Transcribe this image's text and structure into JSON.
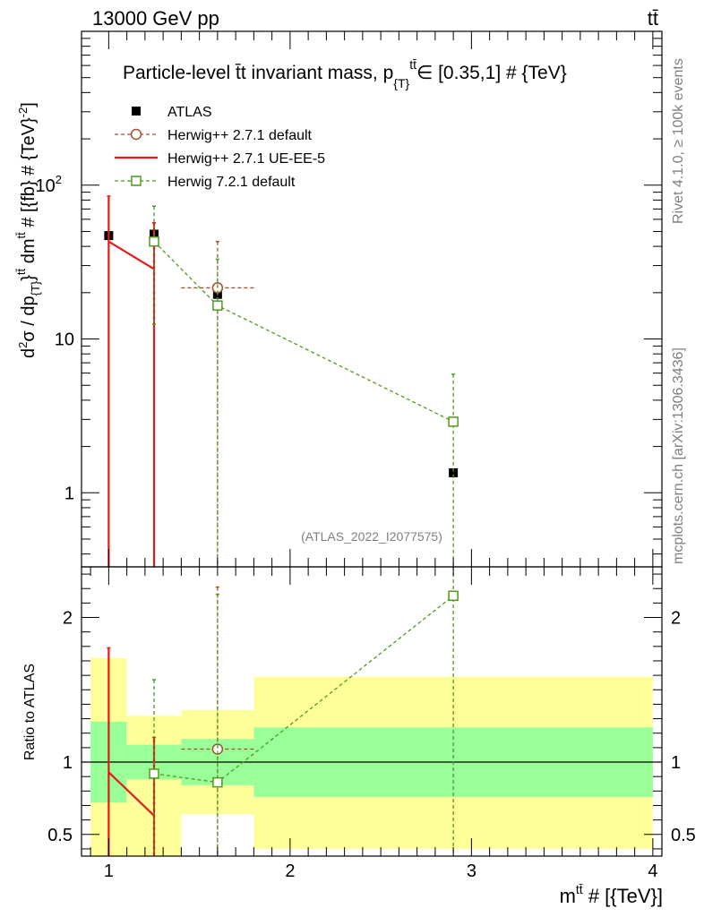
{
  "header": {
    "left": "13000 GeV pp",
    "right": "tt̄"
  },
  "side_labels": {
    "rivet": "Rivet 4.1.0, ≥ 100k events",
    "mcplots": "mcplots.cern.ch [arXiv:1306.3436]"
  },
  "chart_data": [
    {
      "type": "scatter",
      "panel": "main",
      "title": "Particle-level t̄t invariant mass, p{T}ᵗᵗ̄ ∈ [0.35,1] # {TeV}",
      "title_main": "Particle-level t̄t invariant mass, p",
      "title_sub": "{T}",
      "title_sup": "tt̄",
      "title_tail": "∈ [0.35,1] # {TeV}",
      "analysis_tag": "(ATLAS_2022_I2077575)",
      "ylabel": "d²σ / dp{T}ᵗᵗ̄ dmᵗᵗ̄ # [{fb} # {TeV}⁻²]",
      "ylabel_parts": {
        "a": "d",
        "b": "2",
        "c": "σ / dp",
        "d": "{T}",
        "e": "}",
        "f": "tt̄",
        "g": " dm",
        "h": "tt̄",
        "i": " # [{fb} # {TeV}",
        "j": "-2",
        "k": "]"
      },
      "yscale": "log",
      "ylim": [
        0.33,
        1000
      ],
      "xlim": [
        0.85,
        4.05
      ],
      "yticks": [
        {
          "v": 1,
          "label": "1"
        },
        {
          "v": 10,
          "label": "10"
        },
        {
          "v": 100,
          "label": "10",
          "sup": "2"
        }
      ],
      "legend": [
        {
          "label": "ATLAS",
          "color": "#000000",
          "marker": "filled-square",
          "line": "none"
        },
        {
          "label": "Herwig++ 2.7.1 default",
          "color": "#a0522d",
          "marker": "open-circle",
          "line": "dashed"
        },
        {
          "label": "Herwig++ 2.7.1 UE-EE-5",
          "color": "#e31a1c",
          "marker": "none",
          "line": "solid"
        },
        {
          "label": "Herwig 7.2.1 default",
          "color": "#4f9a1e",
          "marker": "open-square",
          "line": "dashed"
        }
      ],
      "series": [
        {
          "name": "ATLAS",
          "color": "#000000",
          "marker": "filled-square",
          "line": "none",
          "x": [
            1.0,
            1.25,
            1.6,
            2.9
          ],
          "y": [
            47,
            48,
            19.5,
            1.35
          ]
        },
        {
          "name": "Herwig++ 2.7.1 default",
          "color": "#a0522d",
          "marker": "open-circle",
          "line": "dashed",
          "x": [
            1.6
          ],
          "y": [
            21.5
          ],
          "xerr_lo": [
            0.2
          ],
          "xerr_hi": [
            0.2
          ],
          "yerr_lo": [
            21.2
          ],
          "yerr_hi": [
            21.5
          ]
        },
        {
          "name": "Herwig++ 2.7.1 UE-EE-5",
          "color": "#e31a1c",
          "marker": "none",
          "line": "solid",
          "x": [
            1.0,
            1.25
          ],
          "y": [
            43,
            28.5
          ],
          "yerr_lo": [
            43,
            28.5
          ],
          "yerr_hi": [
            42,
            28.5
          ]
        },
        {
          "name": "Herwig 7.2.1 default",
          "color": "#4f9a1e",
          "marker": "open-square",
          "line": "dashed",
          "x": [
            1.25,
            1.6,
            2.9
          ],
          "y": [
            43,
            16.5,
            2.9
          ],
          "yerr_lo": [
            30.5,
            16.5,
            2.9
          ],
          "yerr_hi": [
            30,
            16.5,
            3.0
          ]
        }
      ]
    },
    {
      "type": "scatter",
      "panel": "ratio",
      "ylabel": "Ratio to ATLAS",
      "xlabel": "mᵗᵗ̄ # [{TeV}]",
      "xlabel_parts": {
        "a": "m",
        "b": "tt̄",
        "c": " # [{TeV}]"
      },
      "ylim": [
        0.35,
        2.35
      ],
      "xlim": [
        0.85,
        4.05
      ],
      "yticks": [
        {
          "v": 0.5,
          "label": "0.5"
        },
        {
          "v": 1,
          "label": "1"
        },
        {
          "v": 2,
          "label": "2"
        }
      ],
      "xticks": [
        {
          "v": 1,
          "label": "1"
        },
        {
          "v": 2,
          "label": "2"
        },
        {
          "v": 3,
          "label": "3"
        },
        {
          "v": 4,
          "label": "4"
        }
      ],
      "bands": {
        "bins": [
          [
            0.9,
            1.1
          ],
          [
            1.1,
            1.4
          ],
          [
            1.4,
            1.8
          ],
          [
            1.8,
            4.0
          ]
        ],
        "inner": [
          [
            0.72,
            1.28
          ],
          [
            0.88,
            1.12
          ],
          [
            0.84,
            1.16
          ],
          [
            0.76,
            1.24
          ]
        ],
        "outer": [
          [
            0.35,
            1.72
          ],
          [
            0.35,
            1.32
          ],
          [
            0.64,
            1.36
          ],
          [
            0.4,
            1.59
          ]
        ],
        "inner_color": "#99ff99",
        "outer_color": "#ffff99"
      },
      "series": [
        {
          "name": "Herwig++ 2.7.1 default",
          "color": "#a0522d",
          "marker": "open-circle",
          "line": "dashed",
          "x": [
            1.6
          ],
          "y": [
            1.09
          ],
          "xerr_lo": [
            0.2
          ],
          "xerr_hi": [
            0.2
          ],
          "yerr_lo": [
            0.74
          ],
          "yerr_hi": [
            1.12
          ]
        },
        {
          "name": "Herwig++ 2.7.1 UE-EE-5",
          "color": "#e31a1c",
          "marker": "none",
          "line": "solid",
          "x": [
            1.0,
            1.25
          ],
          "y": [
            0.93,
            0.63
          ],
          "yerr_lo": [
            0.58,
            0.28
          ],
          "yerr_hi": [
            0.86,
            0.54
          ]
        },
        {
          "name": "Herwig 7.2.1 default",
          "color": "#4f9a1e",
          "marker": "open-square",
          "line": "dashed",
          "x": [
            1.25,
            1.6,
            2.9
          ],
          "y": [
            0.92,
            0.86,
            2.15
          ],
          "yerr_lo": [
            0.57,
            0.51,
            1.8
          ],
          "yerr_hi": [
            0.65,
            1.3,
            0.2
          ]
        }
      ]
    }
  ]
}
